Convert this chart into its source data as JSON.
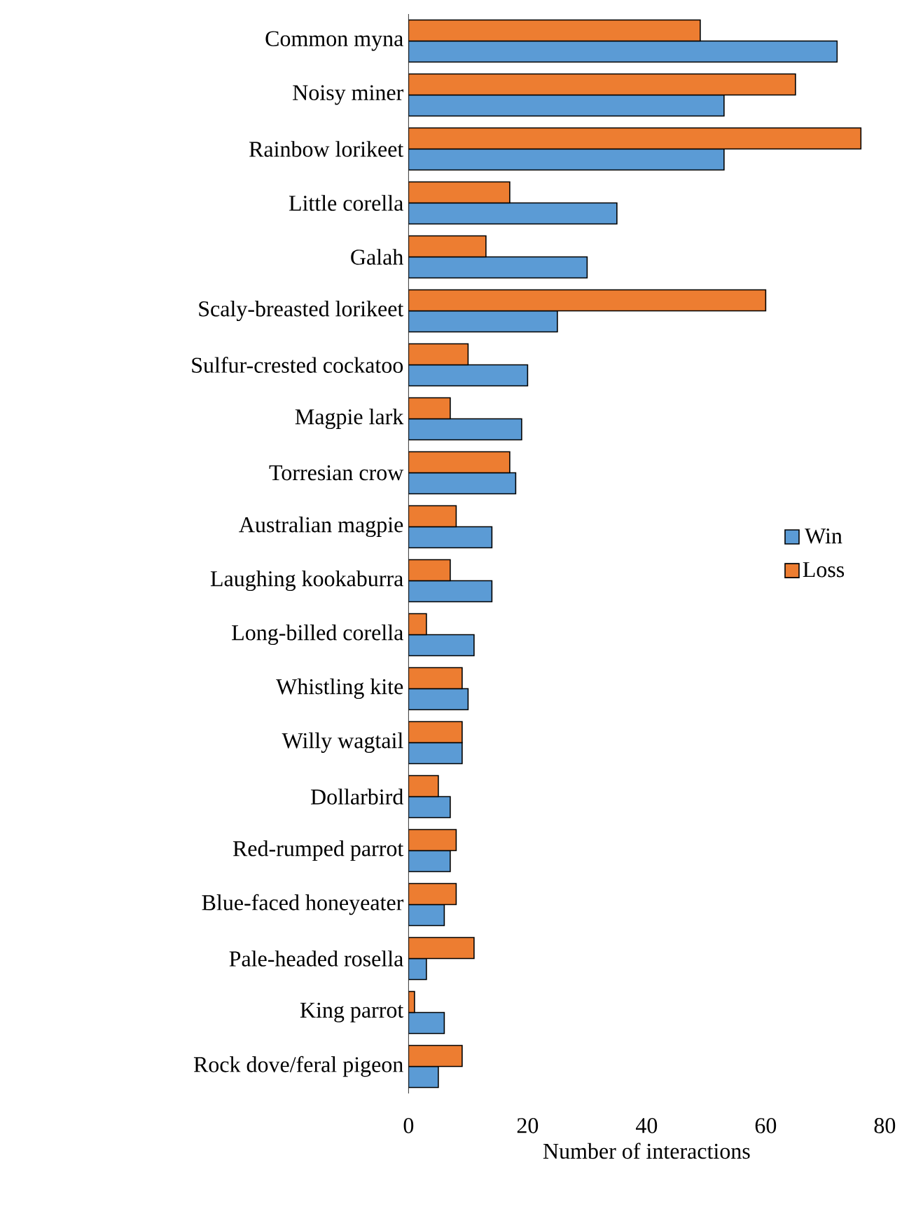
{
  "chart_data": {
    "type": "bar",
    "orientation": "horizontal",
    "xlabel": "Number of interactions",
    "categories": [
      "Common myna",
      "Noisy miner",
      "Rainbow lorikeet",
      "Little corella",
      "Galah",
      "Scaly-breasted lorikeet",
      "Sulfur-crested cockatoo",
      "Magpie lark",
      "Torresian crow",
      "Australian magpie",
      "Laughing kookaburra",
      "Long-billed corella",
      "Whistling kite",
      "Willy wagtail",
      "Dollarbird",
      "Red-rumped parrot",
      "Blue-faced honeyeater",
      "Pale-headed rosella",
      "King parrot",
      "Rock dove/feral pigeon"
    ],
    "series": [
      {
        "name": "Win",
        "color": "#5b9bd5",
        "values": [
          72,
          53,
          53,
          35,
          30,
          25,
          20,
          19,
          18,
          14,
          14,
          11,
          10,
          9,
          7,
          7,
          6,
          3,
          6,
          5
        ]
      },
      {
        "name": "Loss",
        "color": "#ed7d31",
        "values": [
          49,
          65,
          76,
          17,
          13,
          60,
          10,
          7,
          17,
          8,
          7,
          3,
          9,
          9,
          5,
          8,
          8,
          11,
          1,
          9
        ]
      }
    ],
    "xlim": [
      0,
      80
    ],
    "xticks": [
      0,
      20,
      40,
      60,
      80
    ],
    "legend": "right"
  }
}
